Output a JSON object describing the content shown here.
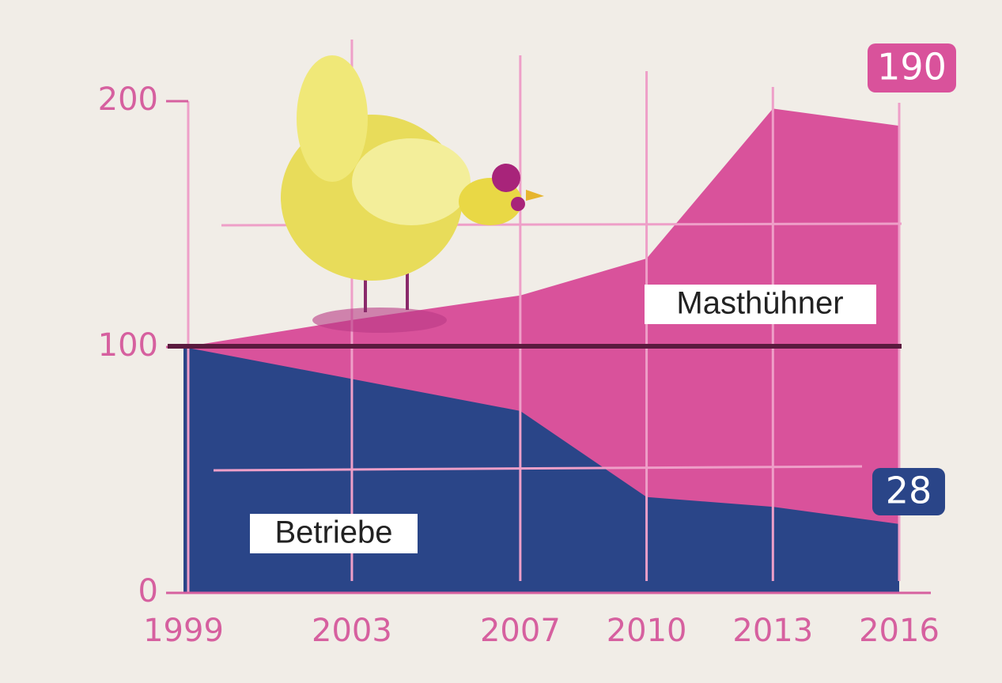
{
  "chart_data": {
    "type": "area",
    "x": [
      1999,
      2003,
      2007,
      2010,
      2013,
      2016
    ],
    "xlim": [
      1999,
      2016
    ],
    "xticks": [
      1999,
      2003,
      2007,
      2010,
      2013,
      2016
    ],
    "ylim": [
      0,
      200
    ],
    "yticks": [
      0,
      100,
      200
    ],
    "series": [
      {
        "name": "Masthühner",
        "color": "#d9529b",
        "values": [
          100,
          111,
          121,
          136,
          197,
          190
        ]
      },
      {
        "name": "Betriebe",
        "color": "#2a4588",
        "values": [
          100,
          87,
          74,
          39,
          35,
          28
        ]
      }
    ]
  }
}
